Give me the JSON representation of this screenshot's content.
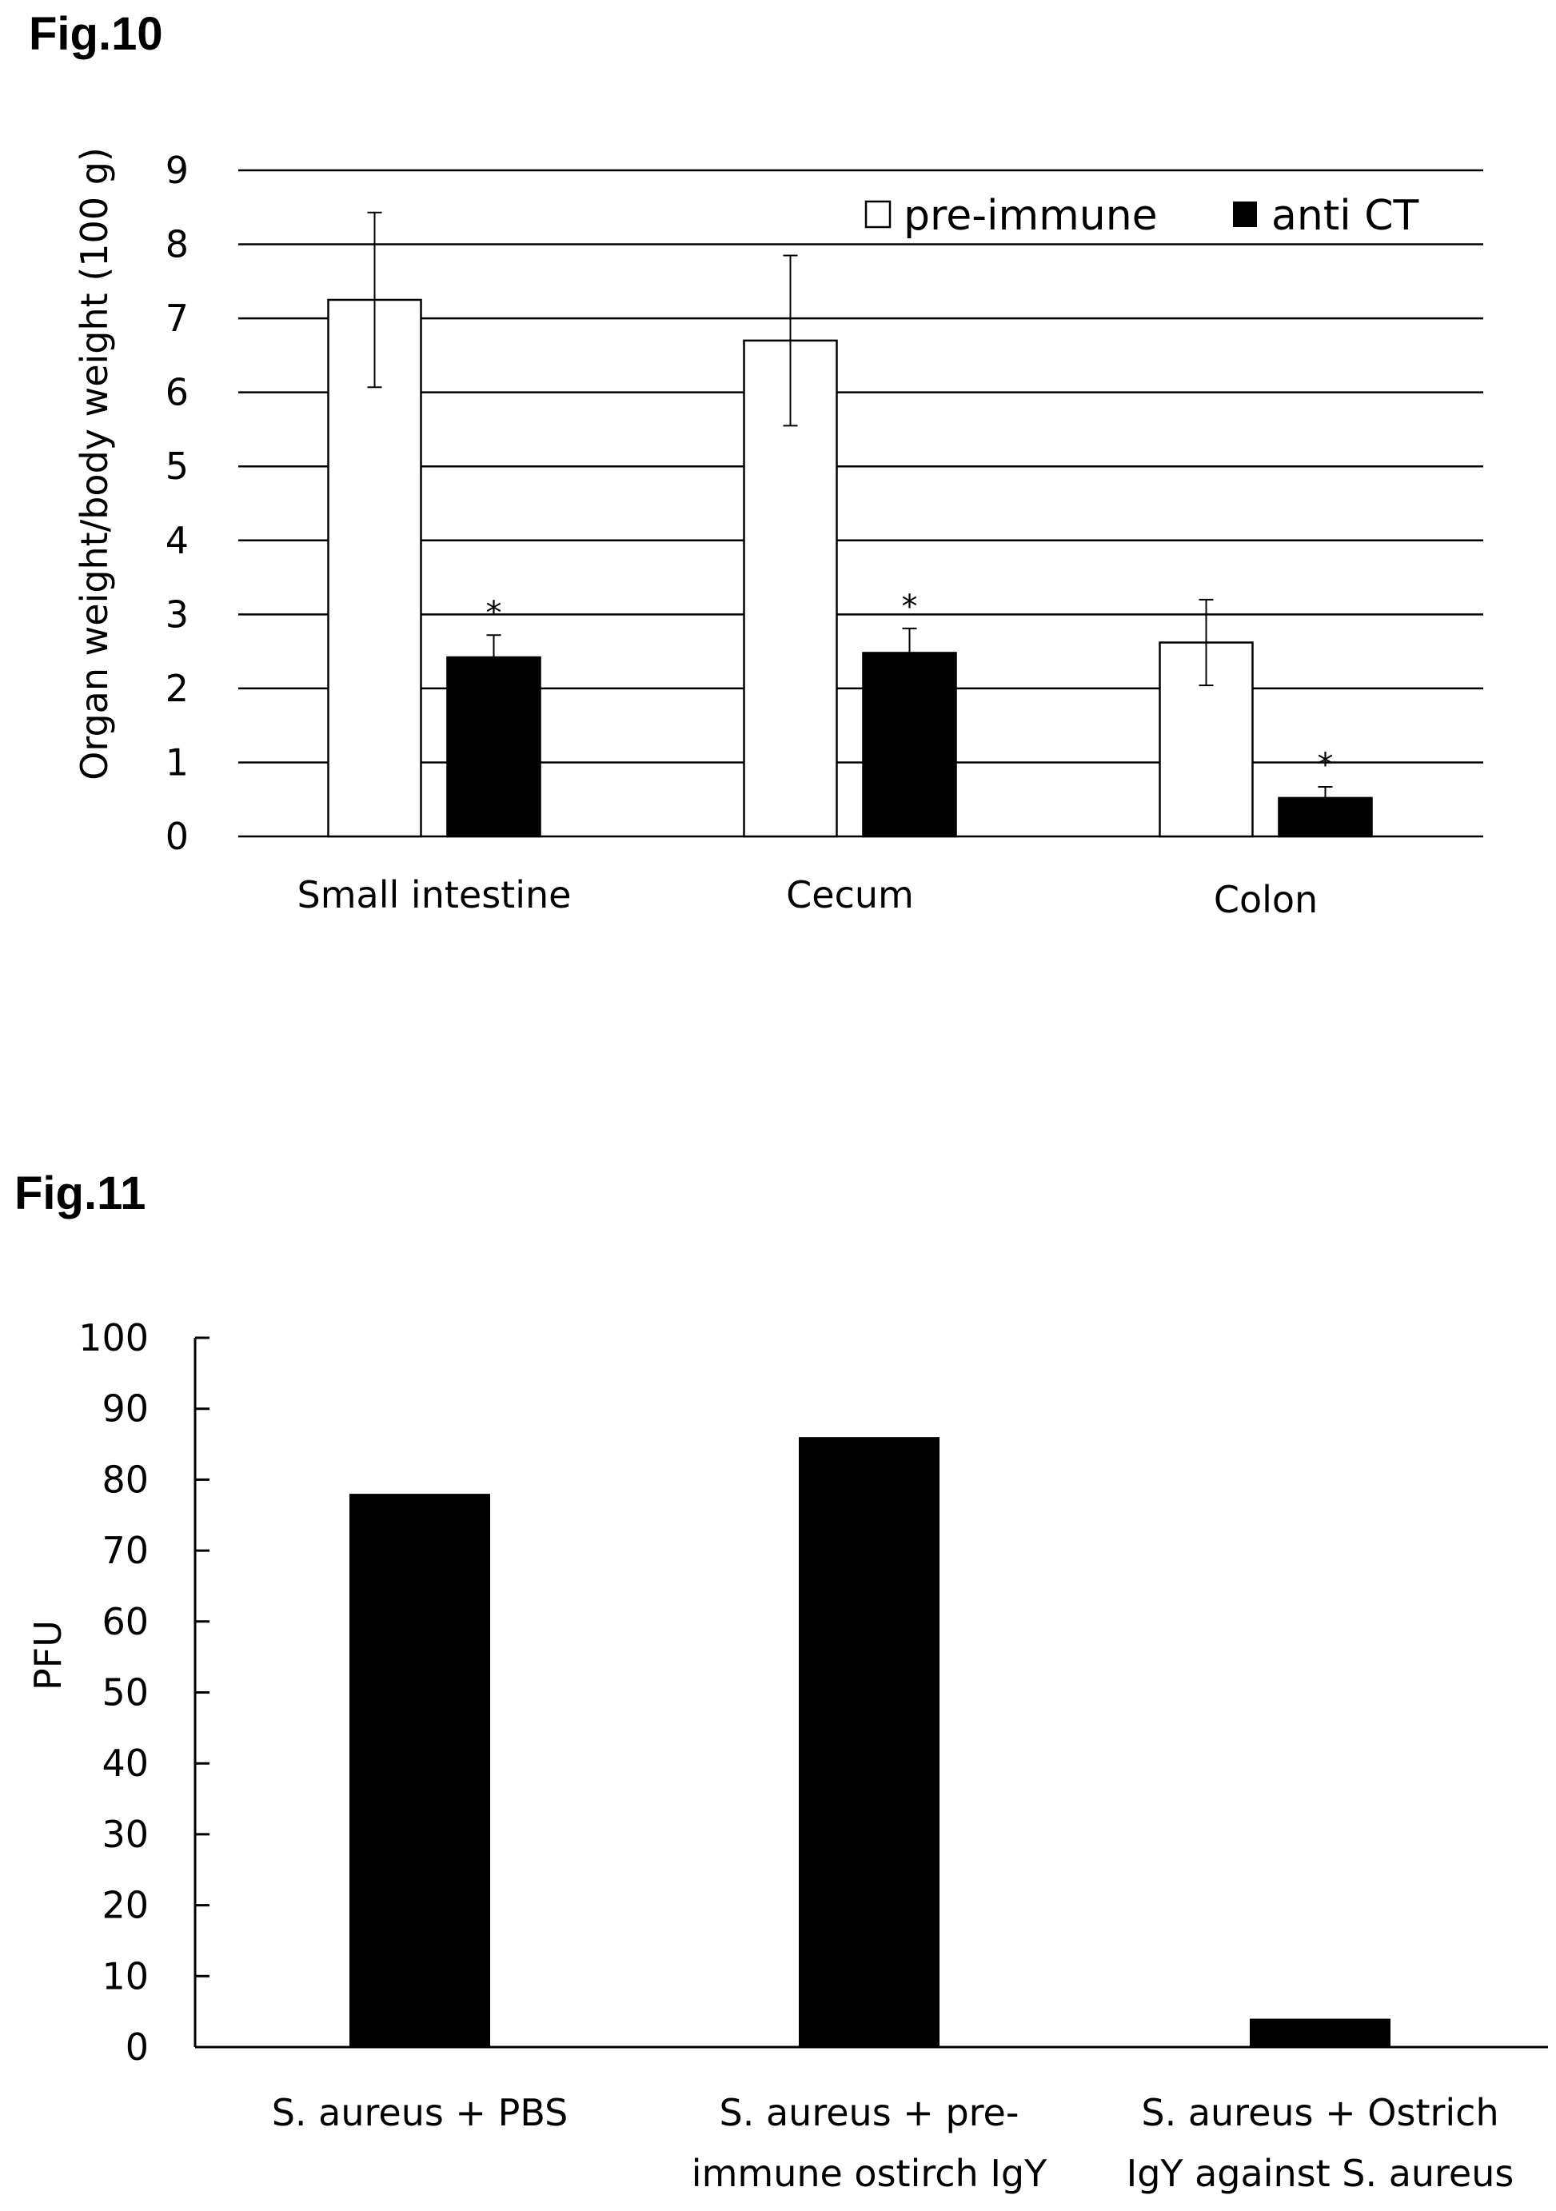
{
  "chart_data": [
    {
      "type": "bar",
      "figure_label": "Fig.10",
      "ylabel": "Organ weight/body weight (100 g)",
      "xlabel": "",
      "ylim": [
        0,
        9
      ],
      "yticks": [
        "0",
        "1",
        "2",
        "3",
        "4",
        "5",
        "6",
        "7",
        "8",
        "9"
      ],
      "grid": true,
      "legend_position": "top-right",
      "categories": [
        "Small intestine",
        "Cecum",
        "Colon"
      ],
      "series": [
        {
          "name": "pre-immune",
          "color": "#ffffff",
          "values": [
            7.25,
            6.7,
            2.62
          ],
          "errors": [
            1.18,
            1.15,
            0.58
          ]
        },
        {
          "name": "anti CT",
          "color": "#000000",
          "values": [
            2.42,
            2.48,
            0.52
          ],
          "errors": [
            0.3,
            0.33,
            0.15
          ]
        }
      ],
      "annotations": [
        {
          "category": "Small intestine",
          "series": "anti CT",
          "text": "*"
        },
        {
          "category": "Cecum",
          "series": "anti CT",
          "text": "*"
        },
        {
          "category": "Colon",
          "series": "anti CT",
          "text": "*"
        }
      ]
    },
    {
      "type": "bar",
      "figure_label": "Fig.11",
      "ylabel": "PFU",
      "xlabel": "",
      "ylim": [
        0,
        100
      ],
      "yticks": [
        "0",
        "10",
        "20",
        "30",
        "40",
        "50",
        "60",
        "70",
        "80",
        "90",
        "100"
      ],
      "grid": false,
      "categories": [
        [
          "S. aureus + PBS"
        ],
        [
          "S. aureus + pre-",
          "immune ostirch IgY"
        ],
        [
          "S. aureus + Ostrich",
          "IgY against S. aureus"
        ]
      ],
      "series": [
        {
          "color": "#000000",
          "values": [
            78,
            86,
            4
          ]
        }
      ]
    }
  ]
}
